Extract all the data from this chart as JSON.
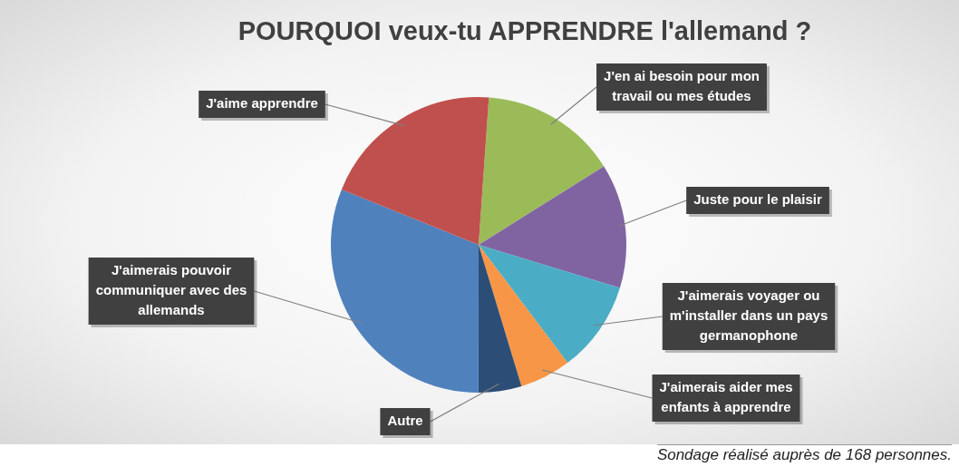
{
  "chart_data": {
    "type": "pie",
    "title": "POURQUOI veux-tu APPRENDRE l'allemand ?",
    "categories": [
      "J'en ai besoin pour mon travail ou mes études",
      "Juste pour le plaisir",
      "J'aimerais voyager ou m'installer dans un pays germanophone",
      "J'aimerais aider mes enfants à apprendre",
      "Autre",
      "J'aimerais pouvoir communiquer avec des allemands",
      "J'aime apprendre"
    ],
    "values": [
      15,
      13.6,
      10,
      5.6,
      4.7,
      31.1,
      20
    ],
    "colors": [
      "#9bbb59",
      "#8064a2",
      "#4bacc6",
      "#f79646",
      "#2c4d75",
      "#4f81bd",
      "#c0504d"
    ],
    "legend": false,
    "annotations": [
      "Sondage réalisé auprès de 168 personnes."
    ]
  }
}
